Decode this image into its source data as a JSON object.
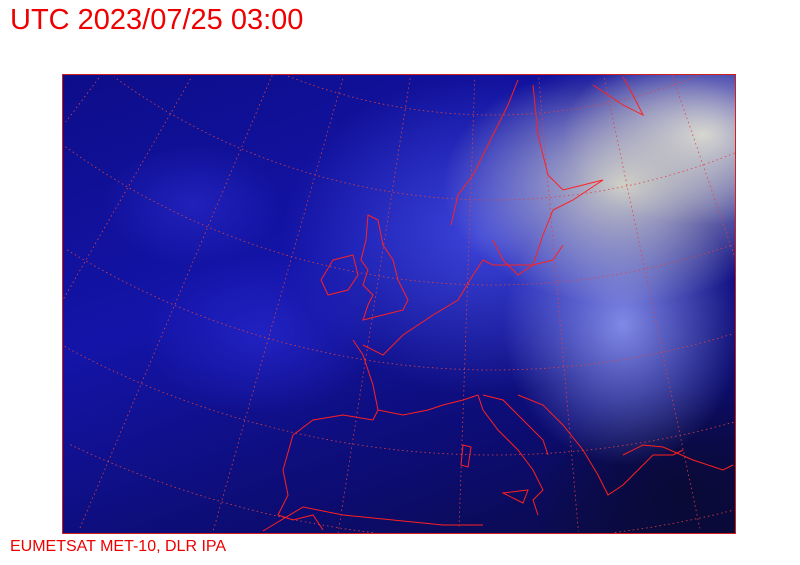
{
  "header": {
    "title": "UTC 2023/07/25 03:00"
  },
  "footer": {
    "credit": "EUMETSAT MET-10, DLR IPA"
  },
  "map": {
    "type": "satellite-composite",
    "overlay_color": "#ee0000",
    "grid": "dotted lat/lon graticule",
    "coastlines": true
  }
}
